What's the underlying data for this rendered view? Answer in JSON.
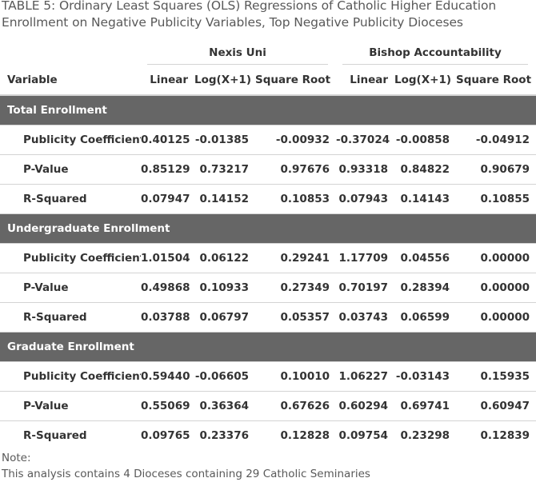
{
  "caption": "TABLE 5: Ordinary Least Squares (OLS) Regressions of Catholic Higher Education Enrollment on Negative Publicity Variables, Top Negative Publicity Dioceses",
  "spanners": [
    "Nexis Uni",
    "Bishop Accountability"
  ],
  "columns": [
    "Variable",
    "Linear",
    "Log(X+1)",
    "Square Root",
    "Linear",
    "Log(X+1)",
    "Square Root"
  ],
  "groups": [
    {
      "title": "Total Enrollment",
      "rows": [
        {
          "label": "Publicity Coefficient",
          "values": [
            "0.40125",
            "-0.01385",
            "-0.00932",
            "-0.37024",
            "-0.00858",
            "-0.04912"
          ]
        },
        {
          "label": "P-Value",
          "values": [
            "0.85129",
            "0.73217",
            "0.97676",
            "0.93318",
            "0.84822",
            "0.90679"
          ]
        },
        {
          "label": "R-Squared",
          "values": [
            "0.07947",
            "0.14152",
            "0.10853",
            "0.07943",
            "0.14143",
            "0.10855"
          ]
        }
      ]
    },
    {
      "title": "Undergraduate Enrollment",
      "rows": [
        {
          "label": "Publicity Coefficient",
          "values": [
            "1.01504",
            "0.06122",
            "0.29241",
            "1.17709",
            "0.04556",
            "0.00000"
          ]
        },
        {
          "label": "P-Value",
          "values": [
            "0.49868",
            "0.10933",
            "0.27349",
            "0.70197",
            "0.28394",
            "0.00000"
          ]
        },
        {
          "label": "R-Squared",
          "values": [
            "0.03788",
            "0.06797",
            "0.05357",
            "0.03743",
            "0.06599",
            "0.00000"
          ]
        }
      ]
    },
    {
      "title": "Graduate Enrollment",
      "rows": [
        {
          "label": "Publicity Coefficient",
          "values": [
            "0.59440",
            "-0.06605",
            "0.10010",
            "1.06227",
            "-0.03143",
            "0.15935"
          ]
        },
        {
          "label": "P-Value",
          "values": [
            "0.55069",
            "0.36364",
            "0.67626",
            "0.60294",
            "0.69741",
            "0.60947"
          ]
        },
        {
          "label": "R-Squared",
          "values": [
            "0.09765",
            "0.23376",
            "0.12828",
            "0.09754",
            "0.23298",
            "0.12839"
          ]
        }
      ]
    }
  ],
  "note": {
    "label": "Note:",
    "text": "This analysis contains 4 Dioceses containing 29 Catholic Seminaries"
  }
}
